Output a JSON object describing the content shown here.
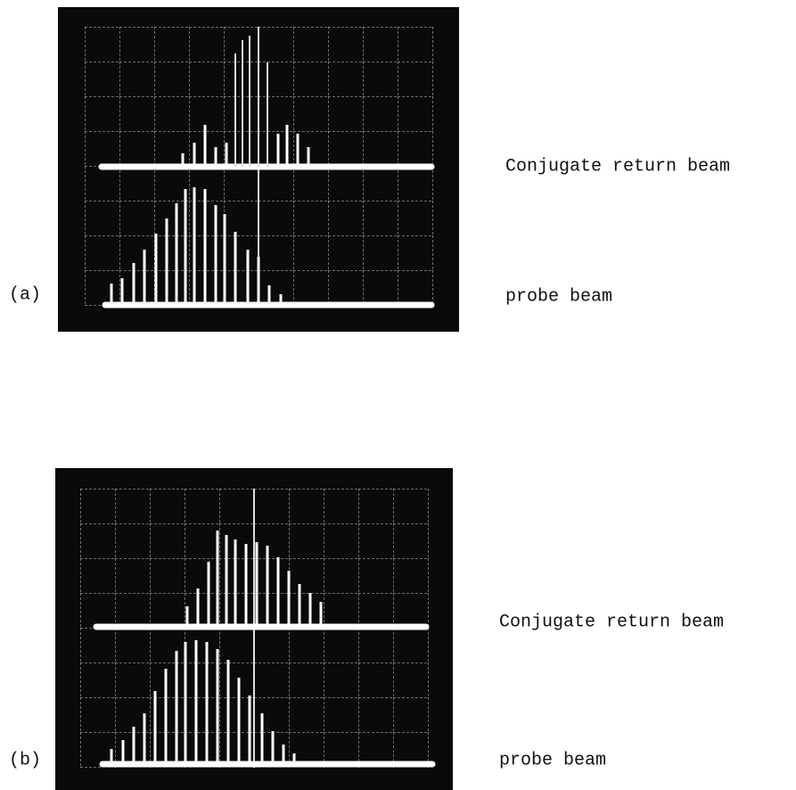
{
  "figure": {
    "panels": [
      {
        "label": "(a)",
        "upper_trace": "Conjugate return beam",
        "lower_trace": "probe beam"
      },
      {
        "label": "(b)",
        "upper_trace": "Conjugate return beam",
        "lower_trace": "probe beam"
      }
    ]
  }
}
